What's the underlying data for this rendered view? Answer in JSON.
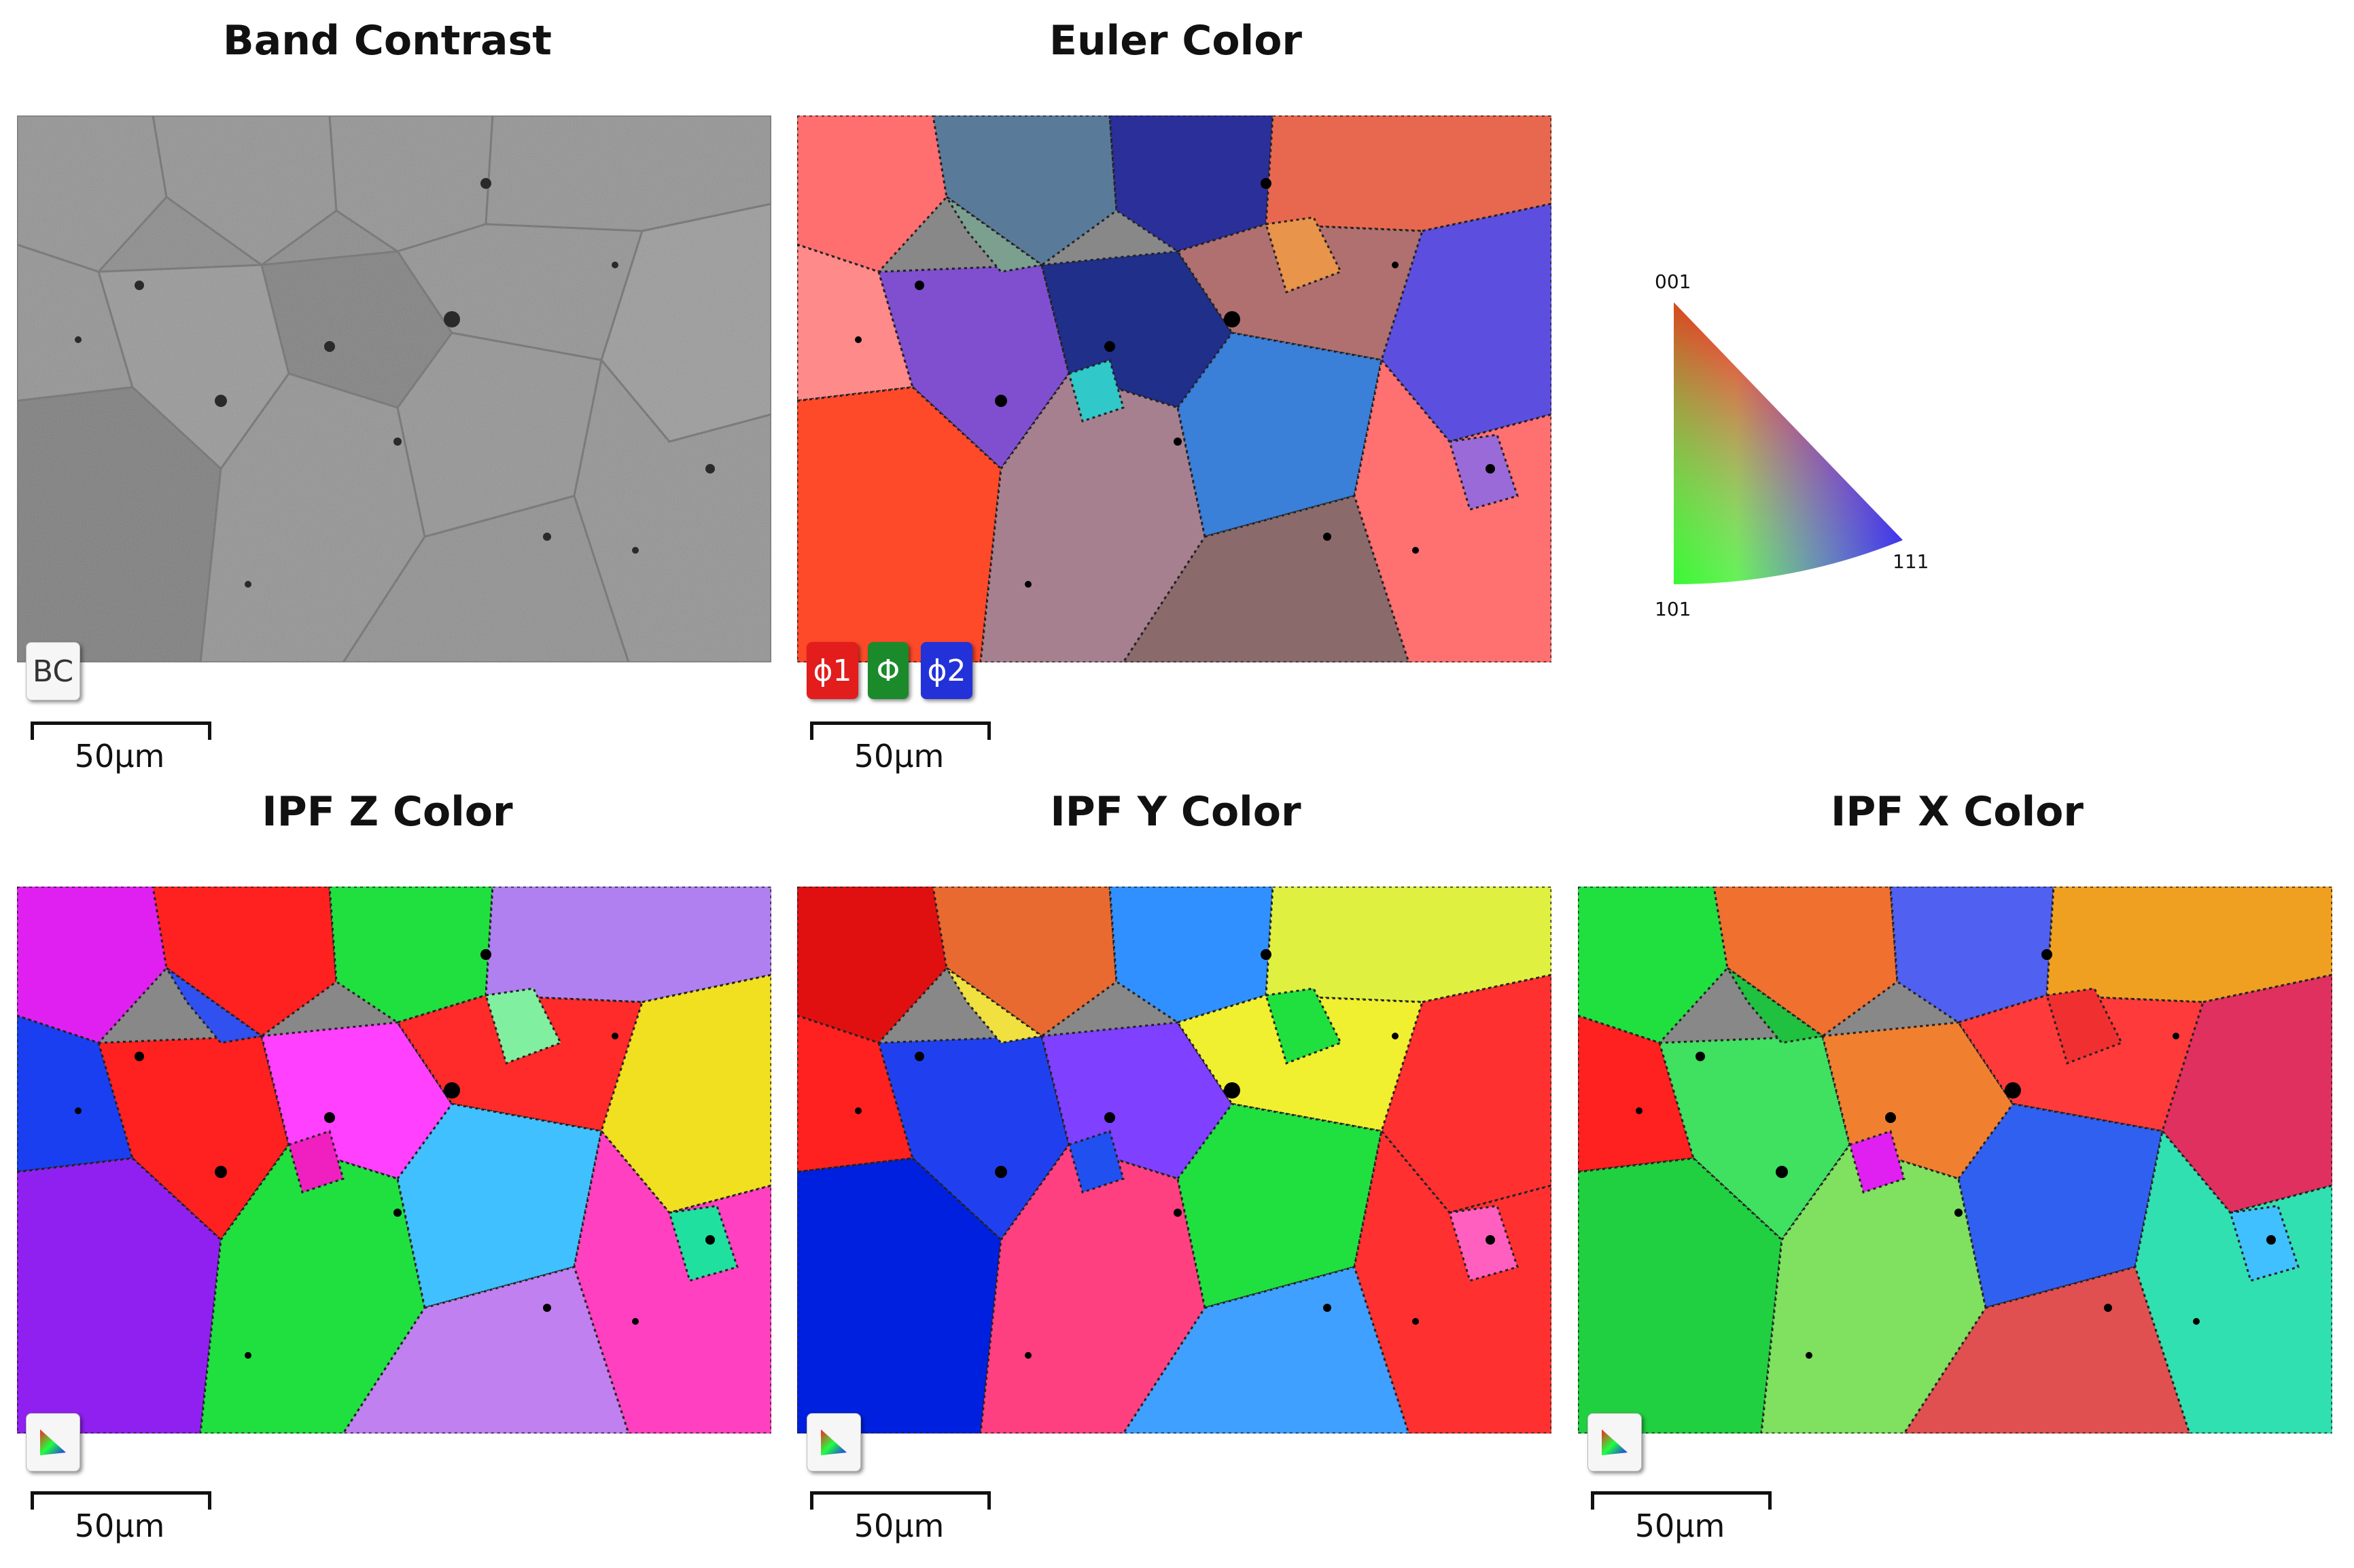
{
  "panels": [
    {
      "id": "bc",
      "title": "Band Contrast",
      "badge": "BC",
      "scalebar": "50μm"
    },
    {
      "id": "euler",
      "title": "Euler Color",
      "badge_labels": [
        "ϕ1",
        "Φ",
        "ϕ2"
      ],
      "scalebar": "50μm"
    },
    {
      "id": "ipfz",
      "title": "IPF Z Color",
      "scalebar": "50μm"
    },
    {
      "id": "ipfy",
      "title": "IPF Y Color",
      "scalebar": "50μm"
    },
    {
      "id": "ipfx",
      "title": "IPF X Color",
      "scalebar": "50μm"
    }
  ],
  "ipf_legend": {
    "top": "001",
    "bottom_left": "101",
    "right": "111"
  },
  "colors": {
    "euler": [
      "#ff6f6f",
      "#5a7a9a",
      "#2b2f9a",
      "#e8684f",
      "#ff8a8a",
      "#7f4fd0",
      "#1f2f8a",
      "#b07070",
      "#5c4fe0",
      "#ff4a2a",
      "#a78090",
      "#3a7fd8",
      "#ff7070",
      "#8a6a6a",
      "#7ca090",
      "#e8944a",
      "#9a6ad8",
      "#30c8c8"
    ],
    "ipfz": [
      "#e020f0",
      "#ff2020",
      "#20e040",
      "#b080f0",
      "#1a3ff0",
      "#ff2020",
      "#ff40ff",
      "#ff2a2a",
      "#f0e020",
      "#9020f0",
      "#20e040",
      "#40c0ff",
      "#ff40c0",
      "#c080f0",
      "#3050f0",
      "#80f0a0",
      "#20e0a0",
      "#f020c0"
    ],
    "ipfy": [
      "#e01010",
      "#e86a30",
      "#3090ff",
      "#e0f040",
      "#ff2020",
      "#2040f0",
      "#8040ff",
      "#f0f030",
      "#ff3030",
      "#0020e0",
      "#ff4080",
      "#20e040",
      "#ff3030",
      "#40a0ff",
      "#f0e040",
      "#20e040",
      "#ff60c0",
      "#2050f0"
    ],
    "ipfx": [
      "#20e040",
      "#f07030",
      "#5060f0",
      "#f0a020",
      "#ff2020",
      "#40e060",
      "#f08030",
      "#ff3a3a",
      "#e03060",
      "#20d040",
      "#80e060",
      "#3060f0",
      "#30e0b0",
      "#e05050",
      "#20c040",
      "#f03030",
      "#40c0ff",
      "#e020f0"
    ]
  }
}
